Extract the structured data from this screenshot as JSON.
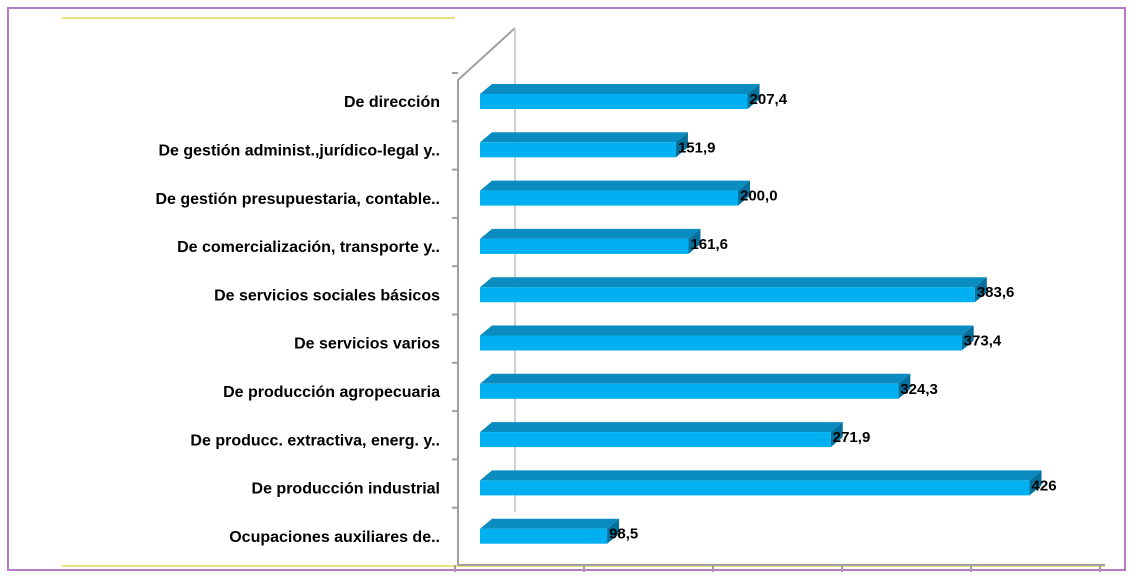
{
  "chart_data": {
    "type": "bar3d_horizontal",
    "categories": [
      "De dirección",
      "De gestión administ.,jurídico-legal y..",
      "De gestión presupuestaria, contable..",
      "De comercialización, transporte y..",
      "De servicios sociales básicos",
      "De servicios varios",
      "De producción agropecuaria",
      "De producc. extractiva, energ. y..",
      "De producción industrial",
      "Ocupaciones auxiliares de.."
    ],
    "values": [
      207.4,
      151.9,
      200.0,
      161.6,
      383.6,
      373.4,
      324.3,
      271.9,
      426,
      98.5
    ],
    "value_labels": [
      "207,4",
      "151,9",
      "200,0",
      "161,6",
      "383,6",
      "373,4",
      "324,3",
      "271,9",
      "426",
      "98,5"
    ],
    "color": "#00b0f0",
    "xlim": [
      0,
      500
    ],
    "xticks": [
      0,
      100,
      200,
      300,
      400,
      500
    ]
  }
}
